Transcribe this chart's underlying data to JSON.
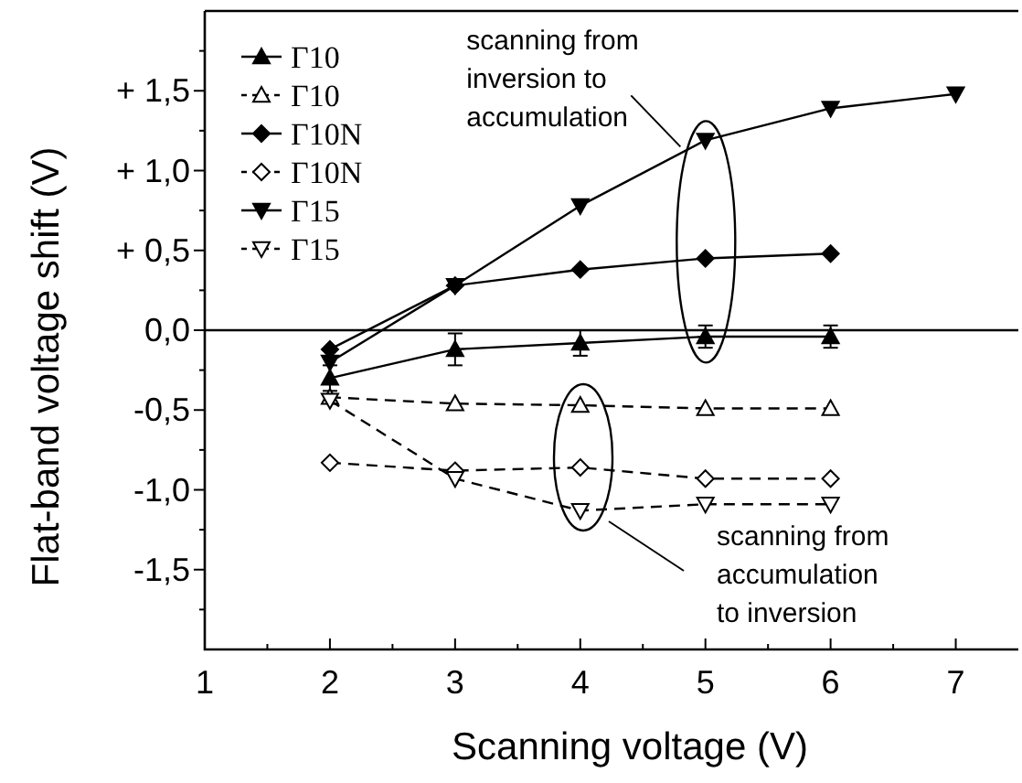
{
  "chart_data": {
    "type": "line",
    "xlabel": "Scanning voltage (V)",
    "ylabel": "Flat-band voltage shift (V)",
    "xlim": [
      1,
      7.5
    ],
    "xticks": [
      1,
      {
        "value": 1.5,
        "label": null
      },
      2,
      {
        "value": 2.5,
        "label": null
      },
      3,
      {
        "value": 3.5,
        "label": null
      },
      4,
      {
        "value": 4.5,
        "label": null
      },
      5,
      {
        "value": 5.5,
        "label": null
      },
      6,
      {
        "value": 6.5,
        "label": null
      },
      7
    ],
    "ylim": [
      -2,
      2
    ],
    "yticks": [
      {
        "value": -1.75,
        "label": null
      },
      {
        "value": -1.5,
        "label": "-1,5"
      },
      {
        "value": -1.25,
        "label": null
      },
      {
        "value": -1,
        "label": "-1,0"
      },
      {
        "value": -0.75,
        "label": null
      },
      {
        "value": -0.5,
        "label": "-0,5"
      },
      {
        "value": -0.25,
        "label": null
      },
      {
        "value": 0,
        "label": "0,0"
      },
      {
        "value": 0.25,
        "label": null
      },
      {
        "value": 0.5,
        "label": "+ 0,5"
      },
      {
        "value": 0.75,
        "label": null
      },
      {
        "value": 1,
        "label": "+ 1,0"
      },
      {
        "value": 1.25,
        "label": null
      },
      {
        "value": 1.5,
        "label": "+ 1,5"
      },
      {
        "value": 1.75,
        "label": null
      }
    ],
    "legend": "top left",
    "grid": false,
    "ref_lines": [
      {
        "axis": "y",
        "value": 0,
        "color": "#000000",
        "line_style": "solid"
      }
    ],
    "series": [
      {
        "name": "Γ10",
        "color": "#000000",
        "marker": "triangle",
        "line_style": "solid",
        "x": [
          2,
          3,
          4,
          5,
          6
        ],
        "values": [
          -0.3,
          -0.12,
          -0.08,
          -0.04,
          -0.04
        ],
        "errors": [
          0.08,
          0.1,
          0.08,
          0.07,
          0.07
        ]
      },
      {
        "name": "Γ10",
        "color": "#000000",
        "marker": "triangle",
        "line_style": "dashed",
        "x": [
          2,
          3,
          4,
          5,
          6
        ],
        "values": [
          -0.42,
          -0.46,
          -0.47,
          -0.49,
          -0.49
        ]
      },
      {
        "name": "Γ10N",
        "color": "#000000",
        "marker": "diamond",
        "line_style": "solid",
        "x": [
          2,
          3,
          4,
          5,
          6
        ],
        "values": [
          -0.12,
          0.28,
          0.38,
          0.45,
          0.48
        ]
      },
      {
        "name": "Γ10N",
        "color": "#000000",
        "marker": "diamond",
        "line_style": "dashed",
        "x": [
          2,
          3,
          4,
          5,
          6
        ],
        "values": [
          -0.83,
          -0.88,
          -0.86,
          -0.93,
          -0.93
        ]
      },
      {
        "name": "Γ15",
        "color": "#000000",
        "marker": "triangle-down",
        "line_style": "solid",
        "x": [
          2,
          3,
          4,
          5,
          6,
          7
        ],
        "values": [
          -0.2,
          0.28,
          0.78,
          1.19,
          1.39,
          1.48
        ]
      },
      {
        "name": "Γ15",
        "color": "#000000",
        "marker": "triangle-down",
        "line_style": "dashed",
        "x": [
          2,
          3,
          4,
          5,
          6
        ],
        "values": [
          -0.44,
          -0.93,
          -1.13,
          -1.09,
          -1.09
        ]
      }
    ],
    "annotations": [
      {
        "text": "scanning from\ninversion to\naccumulation",
        "x": 4.8,
        "y": 1.15
      },
      "scanning from\naccumulation\nto inversion"
    ]
  }
}
